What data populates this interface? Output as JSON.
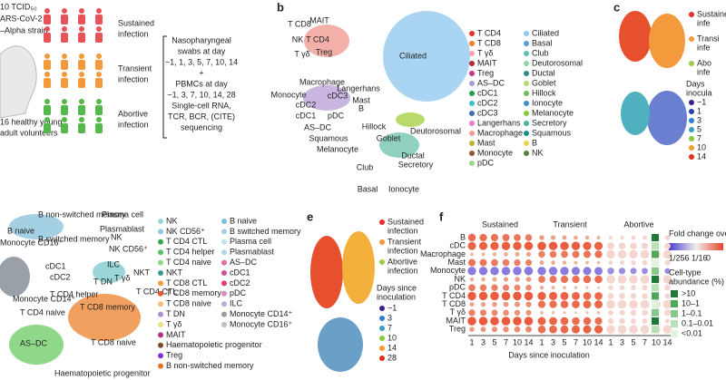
{
  "panel_a": {
    "dose": "10 TCID₅₀",
    "strain_1": "ARS-CoV-2",
    "strain_2": "–Alpha strain",
    "volunteers_1": "16 healthy young",
    "volunteers_2": "adult volunteers",
    "groups": [
      {
        "line1": "Sustained",
        "line2": "infection",
        "color": "#e8535a"
      },
      {
        "line1": "Transient",
        "line2": "infection",
        "color": "#f39a3c"
      },
      {
        "line1": "Abortive",
        "line2": "infection",
        "color": "#55b84a"
      }
    ],
    "protocol": [
      "Nasopharyngeal",
      "swabs at day",
      "−1, 1, 3, 5, 7, 10, 14",
      "+",
      "PBMCs at day",
      "−1, 3, 7, 10, 14, 28",
      "Single-cell RNA,",
      "TCR, BCR, (CITE)",
      "sequencing"
    ]
  },
  "panel_b": {
    "letter": "b",
    "umap_labels": [
      "T CD8",
      "MAIT",
      "NK",
      "T CD4",
      "T γδ",
      "Treg",
      "Ciliated",
      "Macrophage",
      "Langerhans",
      "Monocyte",
      "cDC3",
      "Mast",
      "cDC2",
      "B",
      "cDC1",
      "pDC",
      "AS–DC",
      "Squamous",
      "Hillock",
      "Deutorosomal",
      "Melanocyte",
      "Goblet",
      "Club",
      "Ductal",
      "Secretory",
      "Basal",
      "Ionocyte"
    ],
    "legend_1": [
      {
        "label": "T CD4",
        "color": "#e6302e"
      },
      {
        "label": "T CD8",
        "color": "#f07f2a"
      },
      {
        "label": "T γδ",
        "color": "#f6a3b5"
      },
      {
        "label": "MAIT",
        "color": "#b8282f"
      },
      {
        "label": "Treg",
        "color": "#c2398a"
      },
      {
        "label": "AS–DC",
        "color": "#a89bd0"
      },
      {
        "label": "cDC1",
        "color": "#2e9e46"
      },
      {
        "label": "cDC2",
        "color": "#40c0c9"
      },
      {
        "label": "cDC3",
        "color": "#3d6fb6"
      },
      {
        "label": "Langerhans",
        "color": "#e67fc0"
      },
      {
        "label": "Macrophage",
        "color": "#f59b95"
      },
      {
        "label": "Mast",
        "color": "#b7b92e"
      },
      {
        "label": "Monocyte",
        "color": "#8b5a3c"
      },
      {
        "label": "pDC",
        "color": "#9bd98b"
      }
    ],
    "legend_2": [
      {
        "label": "Ciliated",
        "color": "#8ec8ee"
      },
      {
        "label": "Basal",
        "color": "#4fa3d8"
      },
      {
        "label": "Club",
        "color": "#5cc2b0"
      },
      {
        "label": "Deutorosomal",
        "color": "#8fd3a6"
      },
      {
        "label": "Ductal",
        "color": "#2b8c8c"
      },
      {
        "label": "Goblet",
        "color": "#b9d96a"
      },
      {
        "label": "Hillock",
        "color": "#6bbf59"
      },
      {
        "label": "Ionocyte",
        "color": "#3f8fd0"
      },
      {
        "label": "Melanocyte",
        "color": "#86c93f"
      },
      {
        "label": "Secretory",
        "color": "#4cb5a0"
      },
      {
        "label": "Squamous",
        "color": "#1f8f8a"
      },
      {
        "label": "B",
        "color": "#e9d84f"
      },
      {
        "label": "NK",
        "color": "#5b7f3a"
      }
    ]
  },
  "panel_c": {
    "letter": "c",
    "legend": [
      {
        "line1": "Sustained",
        "line2": "infe",
        "color": "#e6302e"
      },
      {
        "line1": "Transi",
        "line2": "infe",
        "color": "#f39a3c"
      },
      {
        "line1": "Abo",
        "line2": "infe",
        "color": "#9ccc4a"
      }
    ],
    "days_title_1": "Days",
    "days_title_2": "inocula",
    "days": [
      {
        "label": "−1",
        "color": "#3b1f8c"
      },
      {
        "label": "1",
        "color": "#2c3fb0"
      },
      {
        "label": "3",
        "color": "#2f7fd8"
      },
      {
        "label": "5",
        "color": "#3aa0c0"
      },
      {
        "label": "7",
        "color": "#8cc83c"
      },
      {
        "label": "10",
        "color": "#f0a030"
      },
      {
        "label": "14",
        "color": "#e03020"
      }
    ]
  },
  "panel_d": {
    "umap_labels": [
      "B non-switched memory",
      "B naive",
      "B switched memory",
      "Plasma cell",
      "Plasmablast",
      "NK",
      "NK CD56⁺",
      "cDC1",
      "cDC2",
      "ILC",
      "NKT",
      "T γδ",
      "T DN",
      "T CD4 helper",
      "T CD4 CTL",
      "T CD8 memory",
      "T CD4 naive",
      "T CD8 naive",
      "AS–DC",
      "Haematopoietic progenitor",
      "Monocyte CD14⁺",
      "Monocyte CD16⁺"
    ],
    "legend_1": [
      {
        "label": "NK",
        "color": "#9ad6d9"
      },
      {
        "label": "NK CD56⁺",
        "color": "#8fc7e8"
      },
      {
        "label": "T CD4 CTL",
        "color": "#3aa64a"
      },
      {
        "label": "T CD4 helper",
        "color": "#58c06a"
      },
      {
        "label": "T CD4 naive",
        "color": "#8fd88a"
      },
      {
        "label": "NKT",
        "color": "#3a9a9a"
      },
      {
        "label": "T CD8 CTL",
        "color": "#f29f3c"
      },
      {
        "label": "T CD8 memory",
        "color": "#e8592e"
      },
      {
        "label": "T CD8 naive",
        "color": "#f5c07a"
      },
      {
        "label": "T DN",
        "color": "#b08fd0"
      },
      {
        "label": "T γδ",
        "color": "#e9e080"
      },
      {
        "label": "MAIT",
        "color": "#b42f86"
      },
      {
        "label": "Haematopoietic progenitor",
        "color": "#7a4a2a"
      },
      {
        "label": "Treg",
        "color": "#8a2be2"
      },
      {
        "label": "B non-switched memory",
        "color": "#e2762a"
      }
    ],
    "legend_2": [
      {
        "label": "B naive",
        "color": "#7dbfd8"
      },
      {
        "label": "B switched memory",
        "color": "#a3d0e3"
      },
      {
        "label": "Plasma cell",
        "color": "#c6e4ef"
      },
      {
        "label": "Plasmablast",
        "color": "#b4d7e8"
      },
      {
        "label": "AS–DC",
        "color": "#e96aa0"
      },
      {
        "label": "cDC1",
        "color": "#c8559a"
      },
      {
        "label": "cDC2",
        "color": "#e23a7a"
      },
      {
        "label": "pDC",
        "color": "#d98bc4"
      },
      {
        "label": "ILC",
        "color": "#b0b0d8"
      },
      {
        "label": "Monocyte CD14⁺",
        "color": "#9b9b9b"
      },
      {
        "label": "Monocyte CD16⁺",
        "color": "#c0c0c0"
      }
    ]
  },
  "panel_e": {
    "letter": "e",
    "legend": [
      {
        "line1": "Sustained",
        "line2": "infection",
        "color": "#e6302e"
      },
      {
        "line1": "Transient",
        "line2": "infection",
        "color": "#f39a3c"
      },
      {
        "line1": "Abortive",
        "line2": "infection",
        "color": "#9ccc4a"
      }
    ],
    "days_title_1": "Days since",
    "days_title_2": "inoculation",
    "days": [
      {
        "label": "−1",
        "color": "#3b1f8c"
      },
      {
        "label": "3",
        "color": "#2f7fd8"
      },
      {
        "label": "7",
        "color": "#3aa0c0"
      },
      {
        "label": "10",
        "color": "#8cc83c"
      },
      {
        "label": "14",
        "color": "#f0a030"
      },
      {
        "label": "28",
        "color": "#e03020"
      }
    ]
  },
  "panel_f": {
    "letter": "f",
    "groups": [
      "Sustained",
      "Transient",
      "Abortive"
    ],
    "rows": [
      "B",
      "cDC",
      "Macrophage",
      "Mast",
      "Monocyte",
      "NK",
      "pDC",
      "T CD4",
      "T CD8",
      "T γδ",
      "MAIT",
      "Treg"
    ],
    "x_ticks": [
      "1",
      "3",
      "5",
      "7",
      "10",
      "14"
    ],
    "x_title": "Days since inoculation",
    "fold_title": "Fold change ove",
    "fold_ticks": "1/256 1/16",
    "fold_zero": "0",
    "abundance_1": "Cell-type",
    "abundance_2": "abundance (%)",
    "abundance": [
      {
        "label": ">10",
        "color": "#1f7a3a"
      },
      {
        "label": "10–1",
        "color": "#4ea85a"
      },
      {
        "label": "1–0.1",
        "color": "#86c98a"
      },
      {
        "label": "0.1–0.01",
        "color": "#b8e0b6"
      },
      {
        "label": "<0.01",
        "color": "#e2f2df"
      }
    ]
  }
}
